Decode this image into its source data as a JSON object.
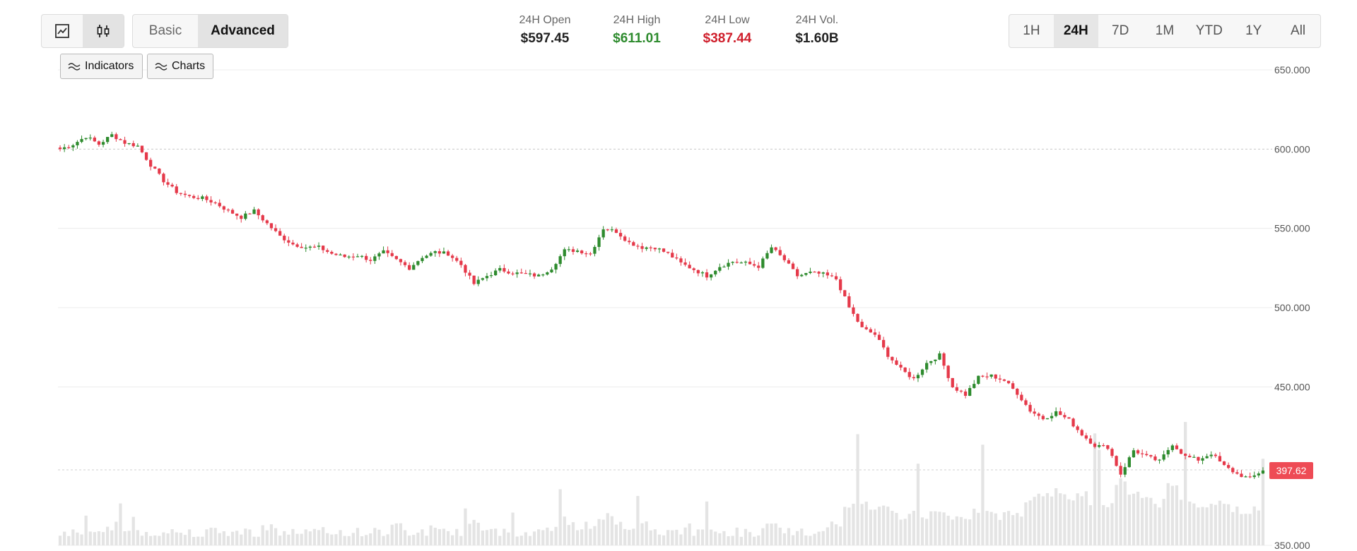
{
  "view_toggle": {
    "options": [
      "line-chart-icon",
      "candlestick-icon"
    ],
    "selected": "candlestick-icon"
  },
  "mode_toggle": {
    "basic": "Basic",
    "advanced": "Advanced",
    "selected": "Advanced"
  },
  "chips": {
    "indicators": "Indicators",
    "charts": "Charts"
  },
  "stats": {
    "open": {
      "label": "24H Open",
      "value": "$597.45"
    },
    "high": {
      "label": "24H High",
      "value": "$611.01"
    },
    "low": {
      "label": "24H Low",
      "value": "$387.44"
    },
    "volume": {
      "label": "24H Vol.",
      "value": "$1.60B"
    }
  },
  "ranges": {
    "items": [
      "1H",
      "24H",
      "7D",
      "1M",
      "YTD",
      "1Y",
      "All"
    ],
    "selected": "24H"
  },
  "colors": {
    "up": "#2e8b2e",
    "down": "#e5394a",
    "high_text": "#2e8b2e",
    "low_text": "#cf1f2c",
    "badge": "#ee4b55"
  },
  "chart_data": {
    "type": "candlestick",
    "ylim": [
      350,
      650
    ],
    "yticks": [
      "650.000",
      "600.000",
      "550.000",
      "500.000",
      "450.000",
      "350.000"
    ],
    "reference_level": 600,
    "current_price": 397.62,
    "current_price_label": "397.62",
    "grid": true,
    "close_path": [
      600,
      603,
      608,
      603,
      609,
      604,
      602,
      590,
      580,
      573,
      570,
      569,
      566,
      561,
      557,
      561,
      553,
      545,
      540,
      538,
      538,
      534,
      532,
      533,
      530,
      535,
      530,
      525,
      532,
      535,
      534,
      527,
      515,
      520,
      524,
      522,
      521,
      520,
      525,
      536,
      536,
      534,
      550,
      548,
      541,
      538,
      538,
      534,
      528,
      524,
      520,
      526,
      529,
      528,
      526,
      538,
      530,
      520,
      522,
      521,
      518,
      500,
      487,
      483,
      470,
      461,
      455,
      465,
      470,
      450,
      445,
      456,
      457,
      454,
      446,
      435,
      430,
      434,
      429,
      420,
      413,
      412,
      395,
      410,
      406,
      403,
      414,
      406,
      404,
      408,
      400,
      395,
      392,
      397.62
    ],
    "volume_profile": [
      1,
      1,
      1,
      1,
      2,
      1,
      1,
      1,
      1,
      1,
      1,
      1,
      1,
      1,
      1,
      1,
      2,
      1,
      1,
      1,
      1,
      1,
      1,
      1,
      1,
      1,
      2,
      1,
      1,
      2,
      1,
      1,
      3,
      1,
      1,
      1,
      1,
      1,
      2,
      3,
      2,
      2,
      4,
      3,
      2,
      2,
      1,
      1,
      1,
      1,
      1,
      1,
      1,
      1,
      1,
      2,
      1,
      1,
      1,
      1,
      2,
      6,
      6,
      5,
      5,
      4,
      4,
      4,
      5,
      4,
      4,
      5,
      4,
      4,
      4,
      7,
      8,
      8,
      7,
      8,
      6,
      6,
      10,
      8,
      7,
      6,
      9,
      7,
      6,
      6,
      6,
      5,
      5,
      4
    ]
  }
}
